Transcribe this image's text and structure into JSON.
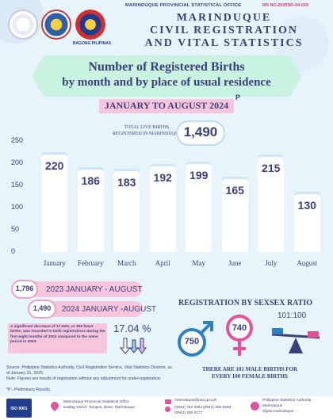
{
  "header": {
    "office": "MARINDUQUE PROVINCIAL STATISTICAL OFFICE",
    "release_no": "RR NO.2025SR-04-029",
    "title_line1": "MARINDUQUE",
    "title_line2": "CIVIL REGISTRATION",
    "title_line3": "AND VITAL STATISTICS",
    "bagong": "BAGONG PILIPINAS"
  },
  "banner": {
    "line1": "Number of Registered Births",
    "line2": "by month and by place of usual residence",
    "period": "JANUARY TO AUGUST 2024",
    "period_note": "P"
  },
  "total": {
    "label_line1": "TOTAL LIVE BIRTHS",
    "label_line2": "REGISTERED IN MARINDUQUE",
    "value": "1,490"
  },
  "chart_data": {
    "type": "bar",
    "categories": [
      "January",
      "February",
      "March",
      "April",
      "May",
      "June",
      "July",
      "August"
    ],
    "values": [
      220,
      186,
      183,
      192,
      199,
      165,
      215,
      130
    ],
    "yticks": [
      0,
      50,
      100,
      150,
      200,
      250
    ],
    "ylim": [
      0,
      250
    ],
    "bar_color": "#ffffff"
  },
  "comparison": {
    "prev_value": "1,796",
    "prev_label": "2023 JANUARY - AUGUST",
    "curr_value": "1,490",
    "curr_label": "2024 JANUARY -AUGUST",
    "note": "A significant decrease of 17.04%, or 306 fewer births, was recorded in birth registrations during the first eight months of 2024 compared to the same period in 2023.",
    "percent": "17.04 %"
  },
  "sex": {
    "title": "REGISTRATION BY SEX",
    "male": "750",
    "female": "740",
    "ratio_title": "SEX RATIO",
    "ratio": "101:100",
    "caption_line1": "THERE ARE 101 MALE BIRTHS FOR",
    "caption_line2": "EVERY 100 FEMALE BIRTHS"
  },
  "source": {
    "line1": "Source: Philippine Statistics Authority, Civil Registration Service, Vital Statistics Division, as of January 31, 2025.",
    "line2": "Note: Figures are results of registration without any adjustment for under-registration.",
    "line3": "*P - Preliminary Results."
  },
  "footer": {
    "iso": "ISO 9001",
    "address_line1": "Marinduque Provincial Statistical Office",
    "address_line2": "Kadlag Street, Tampus, Boac, Marinduque",
    "email": "marinduque@psa.gov.ph",
    "phone1": "(0942) 754 0064",
    "phone2": "(0942) 330 0848",
    "phone3": "(0942) 330 0177",
    "fb_line1": "Philippine Statistics Authority-",
    "fb_line2": "Marinduque",
    "fb_line3": "@psa.marinduque"
  },
  "colors": {
    "navy": "#3b3f7a",
    "pink": "#f7c6dc",
    "mint": "#c9f2e1",
    "male": "#2f7fc1",
    "female": "#e2539a"
  }
}
